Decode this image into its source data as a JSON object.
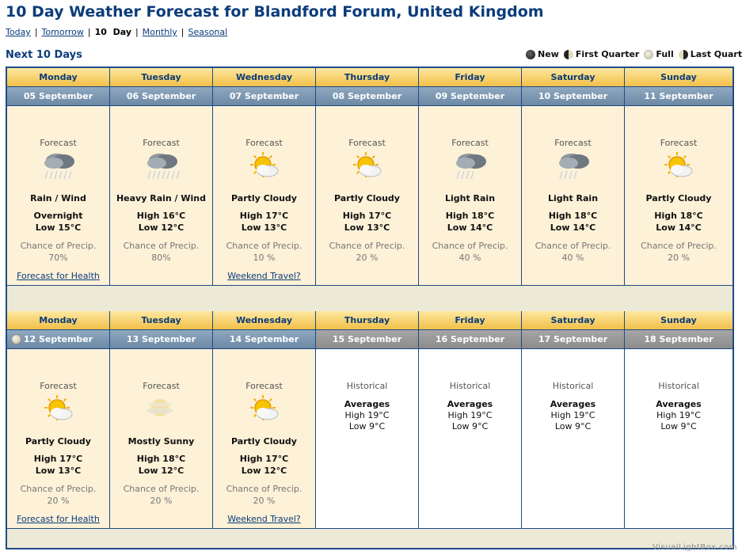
{
  "page": {
    "title": "10 Day Weather Forecast for Blandford Forum, United Kingdom",
    "subtitle": "Next 10 Days",
    "watermark": "VisualLightBox.com"
  },
  "nav": {
    "today": "Today",
    "tomorrow": "Tomorrow",
    "ten_day": "10  Day",
    "monthly": "Monthly",
    "seasonal": "Seasonal",
    "separator": "|"
  },
  "legend": {
    "new": "New",
    "first_quarter": "First Quarter",
    "full": "Full",
    "last_quarter": "Last Quarter"
  },
  "labels": {
    "forecast": "Forecast",
    "chance": "Chance of Precip.",
    "historical": "Historical",
    "averages": "Averages"
  },
  "week1": {
    "days": [
      "Monday",
      "Tuesday",
      "Wednesday",
      "Thursday",
      "Friday",
      "Saturday",
      "Sunday"
    ],
    "dates": [
      "05 September",
      "06 September",
      "07 September",
      "08 September",
      "09 September",
      "10 September",
      "11 September"
    ],
    "cells": [
      {
        "icon": "rain-wind-icon",
        "cond": "Rain / Wind",
        "hi": "Overnight",
        "lo": "Low 15°C",
        "precip": "70%",
        "link": "Forecast for Health"
      },
      {
        "icon": "heavy-rain-icon",
        "cond": "Heavy Rain / Wind",
        "hi": "High 16°C",
        "lo": "Low 12°C",
        "precip": "80%",
        "link": ""
      },
      {
        "icon": "partly-cloudy-icon",
        "cond": "Partly Cloudy",
        "hi": "High 17°C",
        "lo": "Low 13°C",
        "precip": "10 %",
        "link": "Weekend Travel?"
      },
      {
        "icon": "partly-cloudy-icon",
        "cond": "Partly Cloudy",
        "hi": "High 17°C",
        "lo": "Low 13°C",
        "precip": "20 %",
        "link": ""
      },
      {
        "icon": "light-rain-icon",
        "cond": "Light Rain",
        "hi": "High 18°C",
        "lo": "Low 14°C",
        "precip": "40 %",
        "link": ""
      },
      {
        "icon": "light-rain-icon",
        "cond": "Light Rain",
        "hi": "High 18°C",
        "lo": "Low 14°C",
        "precip": "40 %",
        "link": ""
      },
      {
        "icon": "partly-cloudy-icon",
        "cond": "Partly Cloudy",
        "hi": "High 18°C",
        "lo": "Low 14°C",
        "precip": "20 %",
        "link": ""
      }
    ]
  },
  "week2": {
    "days": [
      "Monday",
      "Tuesday",
      "Wednesday",
      "Thursday",
      "Friday",
      "Saturday",
      "Sunday"
    ],
    "dates": [
      "12 September",
      "13 September",
      "14 September",
      "15 September",
      "16 September",
      "17 September",
      "18 September"
    ],
    "cells": [
      {
        "icon": "partly-cloudy-icon",
        "cond": "Partly Cloudy",
        "hi": "High 17°C",
        "lo": "Low 13°C",
        "precip": "20 %",
        "link": "Forecast for Health"
      },
      {
        "icon": "mostly-sunny-icon",
        "cond": "Mostly Sunny",
        "hi": "High 18°C",
        "lo": "Low 12°C",
        "precip": "20 %",
        "link": ""
      },
      {
        "icon": "partly-cloudy-icon",
        "cond": "Partly Cloudy",
        "hi": "High 17°C",
        "lo": "Low 12°C",
        "precip": "20 %",
        "link": "Weekend Travel?"
      }
    ],
    "historical": [
      {
        "hi": "High 19°C",
        "lo": "Low 9°C"
      },
      {
        "hi": "High 19°C",
        "lo": "Low 9°C"
      },
      {
        "hi": "High 19°C",
        "lo": "Low 9°C"
      },
      {
        "hi": "High 19°C",
        "lo": "Low 9°C"
      }
    ]
  }
}
